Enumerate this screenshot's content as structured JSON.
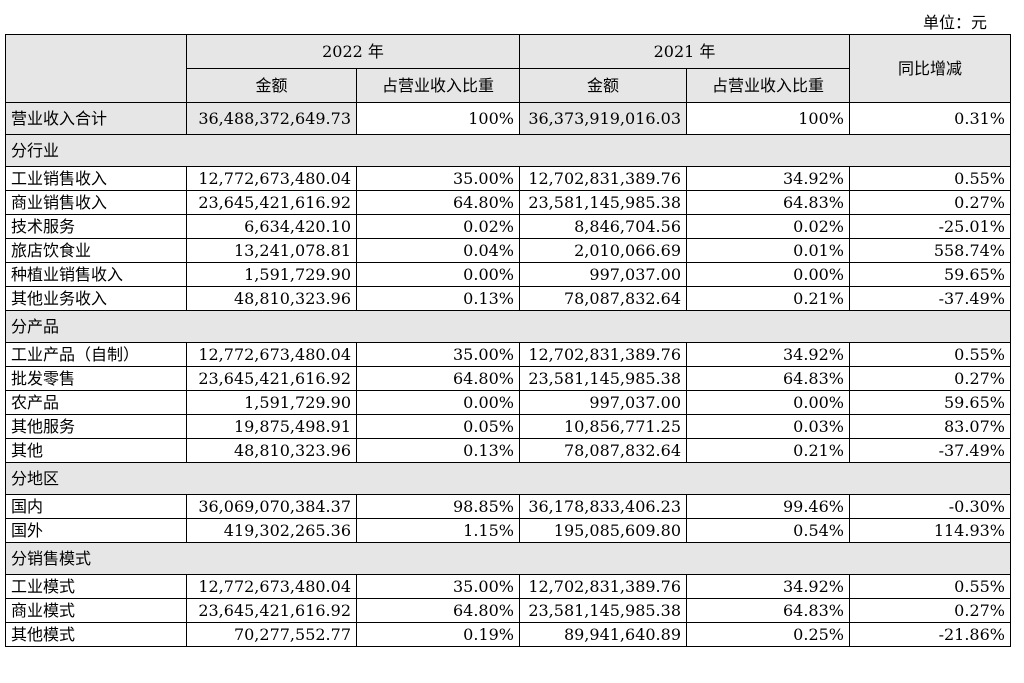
{
  "unit_label": "单位：元",
  "header": {
    "year_2022": "2022 年",
    "year_2021": "2021 年",
    "yoy": "同比增减",
    "amount": "金额",
    "share": "占营业收入比重"
  },
  "total": {
    "label": "营业收入合计",
    "amount_2022": "36,488,372,649.73",
    "share_2022": "100%",
    "amount_2021": "36,373,919,016.03",
    "share_2021": "100%",
    "yoy": "0.31%"
  },
  "sections": [
    {
      "title": "分行业",
      "rows": [
        {
          "label": "工业销售收入",
          "amount_2022": "12,772,673,480.04",
          "share_2022": "35.00%",
          "amount_2021": "12,702,831,389.76",
          "share_2021": "34.92%",
          "yoy": "0.55%"
        },
        {
          "label": "商业销售收入",
          "amount_2022": "23,645,421,616.92",
          "share_2022": "64.80%",
          "amount_2021": "23,581,145,985.38",
          "share_2021": "64.83%",
          "yoy": "0.27%"
        },
        {
          "label": "技术服务",
          "amount_2022": "6,634,420.10",
          "share_2022": "0.02%",
          "amount_2021": "8,846,704.56",
          "share_2021": "0.02%",
          "yoy": "-25.01%"
        },
        {
          "label": "旅店饮食业",
          "amount_2022": "13,241,078.81",
          "share_2022": "0.04%",
          "amount_2021": "2,010,066.69",
          "share_2021": "0.01%",
          "yoy": "558.74%"
        },
        {
          "label": "种植业销售收入",
          "amount_2022": "1,591,729.90",
          "share_2022": "0.00%",
          "amount_2021": "997,037.00",
          "share_2021": "0.00%",
          "yoy": "59.65%"
        },
        {
          "label": "其他业务收入",
          "amount_2022": "48,810,323.96",
          "share_2022": "0.13%",
          "amount_2021": "78,087,832.64",
          "share_2021": "0.21%",
          "yoy": "-37.49%"
        }
      ]
    },
    {
      "title": "分产品",
      "rows": [
        {
          "label": "工业产品（自制）",
          "amount_2022": "12,772,673,480.04",
          "share_2022": "35.00%",
          "amount_2021": "12,702,831,389.76",
          "share_2021": "34.92%",
          "yoy": "0.55%"
        },
        {
          "label": "批发零售",
          "amount_2022": "23,645,421,616.92",
          "share_2022": "64.80%",
          "amount_2021": "23,581,145,985.38",
          "share_2021": "64.83%",
          "yoy": "0.27%"
        },
        {
          "label": "农产品",
          "amount_2022": "1,591,729.90",
          "share_2022": "0.00%",
          "amount_2021": "997,037.00",
          "share_2021": "0.00%",
          "yoy": "59.65%"
        },
        {
          "label": "其他服务",
          "amount_2022": "19,875,498.91",
          "share_2022": "0.05%",
          "amount_2021": "10,856,771.25",
          "share_2021": "0.03%",
          "yoy": "83.07%"
        },
        {
          "label": "其他",
          "amount_2022": "48,810,323.96",
          "share_2022": "0.13%",
          "amount_2021": "78,087,832.64",
          "share_2021": "0.21%",
          "yoy": "-37.49%"
        }
      ]
    },
    {
      "title": "分地区",
      "rows": [
        {
          "label": "国内",
          "amount_2022": "36,069,070,384.37",
          "share_2022": "98.85%",
          "amount_2021": "36,178,833,406.23",
          "share_2021": "99.46%",
          "yoy": "-0.30%"
        },
        {
          "label": "国外",
          "amount_2022": "419,302,265.36",
          "share_2022": "1.15%",
          "amount_2021": "195,085,609.80",
          "share_2021": "0.54%",
          "yoy": "114.93%"
        }
      ]
    },
    {
      "title": "分销售模式",
      "rows": [
        {
          "label": "工业模式",
          "amount_2022": "12,772,673,480.04",
          "share_2022": "35.00%",
          "amount_2021": "12,702,831,389.76",
          "share_2021": "34.92%",
          "yoy": "0.55%"
        },
        {
          "label": "商业模式",
          "amount_2022": "23,645,421,616.92",
          "share_2022": "64.80%",
          "amount_2021": "23,581,145,985.38",
          "share_2021": "64.83%",
          "yoy": "0.27%"
        },
        {
          "label": "其他模式",
          "amount_2022": "70,277,552.77",
          "share_2022": "0.19%",
          "amount_2021": "89,941,640.89",
          "share_2021": "0.25%",
          "yoy": "-21.86%"
        }
      ]
    }
  ]
}
